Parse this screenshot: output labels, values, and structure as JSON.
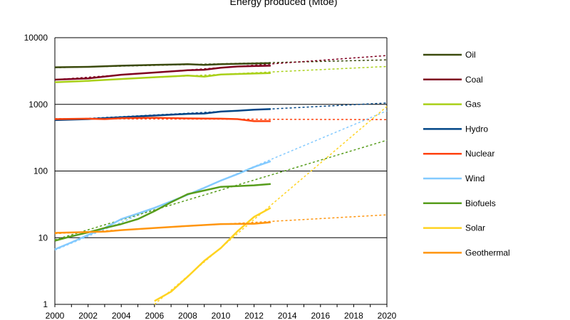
{
  "chart_data": {
    "type": "line",
    "title": "Energy produced (Mtoe)",
    "xlabel": "",
    "ylabel": "",
    "xlim": [
      2000,
      2020
    ],
    "ylim": [
      1,
      10000
    ],
    "yscale": "log",
    "grid": "horizontal",
    "legend_position": "right",
    "x_ticks": [
      "2000",
      "2002",
      "2004",
      "2006",
      "2008",
      "2010",
      "2012",
      "2014",
      "2016",
      "2018",
      "2020"
    ],
    "y_ticks": [
      "1",
      "10",
      "100",
      "1000",
      "10000"
    ],
    "series": [
      {
        "name": "Oil",
        "color": "#3b4a0d",
        "points": [
          [
            2000,
            3600
          ],
          [
            2002,
            3650
          ],
          [
            2004,
            3800
          ],
          [
            2006,
            3900
          ],
          [
            2008,
            4000
          ],
          [
            2009,
            3900
          ],
          [
            2010,
            4000
          ],
          [
            2012,
            4100
          ],
          [
            2013,
            4150
          ]
        ],
        "trend": [
          [
            2000,
            3550
          ],
          [
            2020,
            4650
          ]
        ]
      },
      {
        "name": "Coal",
        "color": "#7f0020",
        "points": [
          [
            2000,
            2350
          ],
          [
            2002,
            2450
          ],
          [
            2004,
            2780
          ],
          [
            2006,
            3000
          ],
          [
            2008,
            3250
          ],
          [
            2009,
            3300
          ],
          [
            2010,
            3550
          ],
          [
            2011,
            3700
          ],
          [
            2012,
            3750
          ],
          [
            2013,
            3800
          ]
        ],
        "trend": [
          [
            2000,
            2350
          ],
          [
            2020,
            5400
          ]
        ]
      },
      {
        "name": "Gas",
        "color": "#a9d018",
        "points": [
          [
            2000,
            2150
          ],
          [
            2002,
            2250
          ],
          [
            2004,
            2400
          ],
          [
            2006,
            2550
          ],
          [
            2008,
            2700
          ],
          [
            2009,
            2600
          ],
          [
            2010,
            2800
          ],
          [
            2012,
            2900
          ],
          [
            2013,
            2950
          ]
        ],
        "trend": [
          [
            2000,
            2150
          ],
          [
            2020,
            3700
          ]
        ]
      },
      {
        "name": "Hydro",
        "color": "#004586",
        "points": [
          [
            2000,
            580
          ],
          [
            2002,
            600
          ],
          [
            2004,
            640
          ],
          [
            2006,
            680
          ],
          [
            2008,
            720
          ],
          [
            2009,
            730
          ],
          [
            2010,
            780
          ],
          [
            2011,
            800
          ],
          [
            2012,
            830
          ],
          [
            2013,
            850
          ]
        ],
        "trend": [
          [
            2000,
            580
          ],
          [
            2020,
            1050
          ]
        ]
      },
      {
        "name": "Nuclear",
        "color": "#ff420e",
        "points": [
          [
            2000,
            600
          ],
          [
            2002,
            610
          ],
          [
            2003,
            600
          ],
          [
            2004,
            620
          ],
          [
            2006,
            630
          ],
          [
            2008,
            615
          ],
          [
            2010,
            610
          ],
          [
            2011,
            600
          ],
          [
            2012,
            560
          ],
          [
            2013,
            560
          ]
        ],
        "trend": [
          [
            2000,
            610
          ],
          [
            2020,
            590
          ]
        ]
      },
      {
        "name": "Wind",
        "color": "#83caff",
        "points": [
          [
            2000,
            6.7
          ],
          [
            2001,
            8.5
          ],
          [
            2002,
            11
          ],
          [
            2003,
            14
          ],
          [
            2004,
            19
          ],
          [
            2005,
            23
          ],
          [
            2006,
            28
          ],
          [
            2007,
            35
          ],
          [
            2008,
            44
          ],
          [
            2009,
            56
          ],
          [
            2010,
            72
          ],
          [
            2011,
            90
          ],
          [
            2012,
            115
          ],
          [
            2013,
            140
          ]
        ],
        "trend": [
          [
            2000,
            6.5
          ],
          [
            2020,
            800
          ]
        ]
      },
      {
        "name": "Biofuels",
        "color": "#579d1c",
        "points": [
          [
            2000,
            9
          ],
          [
            2001,
            10.5
          ],
          [
            2002,
            12
          ],
          [
            2003,
            14
          ],
          [
            2004,
            16
          ],
          [
            2005,
            19
          ],
          [
            2006,
            25
          ],
          [
            2007,
            34
          ],
          [
            2008,
            45
          ],
          [
            2009,
            51
          ],
          [
            2010,
            58
          ],
          [
            2012,
            61
          ],
          [
            2013,
            64
          ]
        ],
        "trend": [
          [
            2000,
            9.3
          ],
          [
            2020,
            290
          ]
        ]
      },
      {
        "name": "Solar",
        "color": "#ffd320",
        "points": [
          [
            2006,
            1.12
          ],
          [
            2007,
            1.55
          ],
          [
            2008,
            2.6
          ],
          [
            2009,
            4.5
          ],
          [
            2010,
            7
          ],
          [
            2011,
            12.5
          ],
          [
            2012,
            20.5
          ],
          [
            2013,
            28
          ]
        ],
        "trend": [
          [
            2006,
            1.0
          ],
          [
            2020,
            930
          ]
        ]
      },
      {
        "name": "Geothermal",
        "color": "#ff950e",
        "points": [
          [
            2000,
            11.8
          ],
          [
            2002,
            12.2
          ],
          [
            2003,
            12.3
          ],
          [
            2004,
            13
          ],
          [
            2006,
            14
          ],
          [
            2008,
            15
          ],
          [
            2010,
            16
          ],
          [
            2012,
            16.2
          ],
          [
            2013,
            17
          ]
        ],
        "trend": [
          [
            2000,
            11.5
          ],
          [
            2020,
            22
          ]
        ]
      }
    ]
  }
}
